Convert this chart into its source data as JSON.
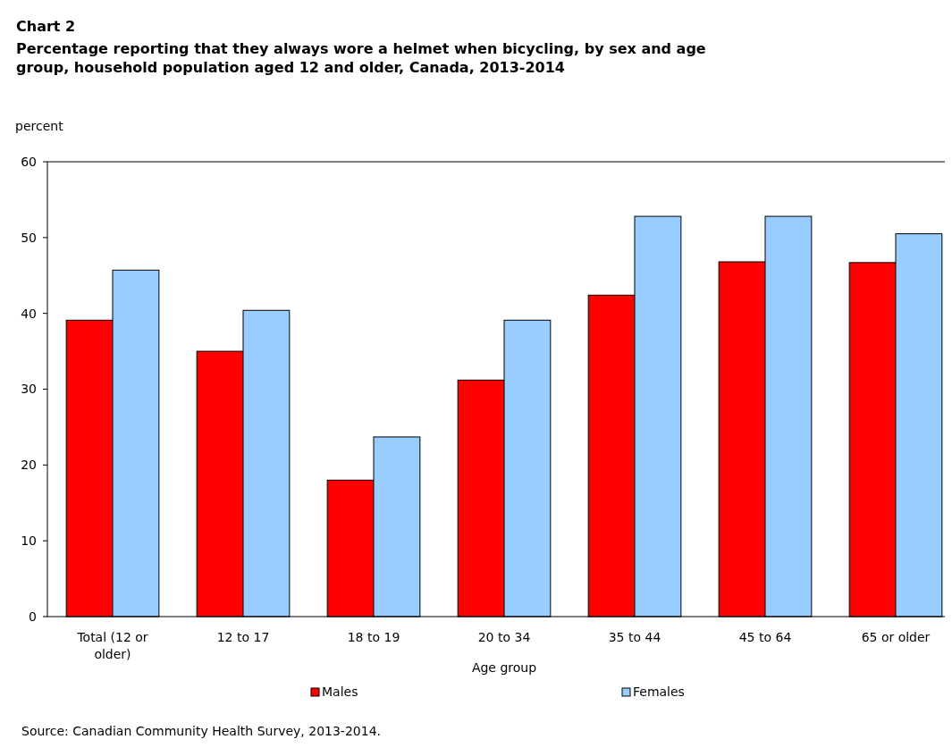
{
  "chart_data": {
    "type": "bar",
    "title": "Chart 2",
    "subtitle": "Percentage reporting that they always wore a helmet when bicycling, by sex and age group, household population aged 12 and older, Canada, 2013-2014",
    "ylabel": "percent",
    "xlabel": "Age group",
    "categories": [
      "Total (12 or older)",
      "12 to 17",
      "18 to 19",
      "20 to 34",
      "35 to 44",
      "45 to 64",
      "65 or older"
    ],
    "series": [
      {
        "name": "Males",
        "color": "#ff0000",
        "values": [
          39.1,
          35.0,
          18.0,
          31.2,
          42.4,
          46.8,
          46.7
        ]
      },
      {
        "name": "Females",
        "color": "#99ccff",
        "values": [
          45.7,
          40.4,
          23.7,
          39.1,
          52.8,
          52.8,
          50.5
        ]
      }
    ],
    "ylim": [
      0,
      60
    ],
    "yticks": [
      0,
      10,
      20,
      30,
      40,
      50,
      60
    ],
    "grid": false,
    "legend": "bottom",
    "annotations": [
      "Source: Canadian Community Health Survey, 2013-2014."
    ]
  }
}
